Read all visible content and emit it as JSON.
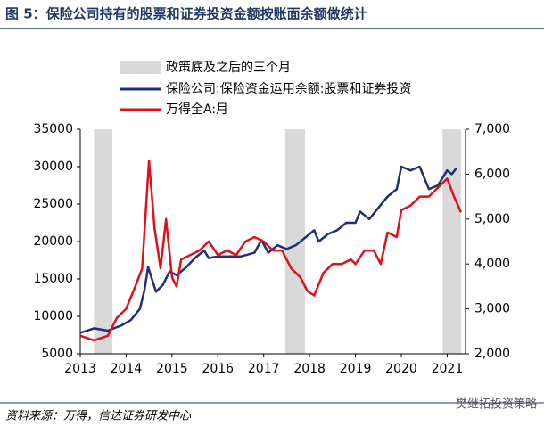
{
  "chart_data": {
    "type": "line",
    "title": "图 5：保险公司持有的股票和证券投资金额按账面余额做统计",
    "source": "资料来源：万得，信达证券研发中心",
    "watermark": "樊继拓投资策略",
    "shaded": {
      "name": "政策底及之后的三个月",
      "color": "#d9d9d9",
      "periods": [
        [
          2013.3,
          2013.7
        ],
        [
          2017.47,
          2017.9
        ],
        [
          2020.9,
          2021.3
        ]
      ]
    },
    "xlim": [
      2013,
      2021.4
    ],
    "xticks": [
      2013,
      2014,
      2015,
      2016,
      2017,
      2018,
      2019,
      2020,
      2021
    ],
    "ylim": [
      5000,
      35000
    ],
    "yticks": [
      5000,
      10000,
      15000,
      20000,
      25000,
      30000,
      35000
    ],
    "y2lim": [
      2000,
      7000
    ],
    "y2ticks": [
      {
        "value": 2000,
        "label": "2,000"
      },
      {
        "value": 3000,
        "label": "3,000"
      },
      {
        "value": 4000,
        "label": "4,000"
      },
      {
        "value": 5000,
        "label": "5,000"
      },
      {
        "value": 6000,
        "label": "6,000"
      },
      {
        "value": 7000,
        "label": "7,000"
      }
    ],
    "series": [
      {
        "name": "保险公司:保险资金运用余额:股票和证券投资",
        "color": "#1f2f7a",
        "x": [
          2013.0,
          2013.3,
          2013.6,
          2013.9,
          2014.1,
          2014.3,
          2014.4,
          2014.48,
          2014.65,
          2014.8,
          2014.95,
          2015.1,
          2015.3,
          2015.5,
          2015.7,
          2015.8,
          2016.0,
          2016.5,
          2016.8,
          2016.95,
          2017.1,
          2017.3,
          2017.5,
          2017.7,
          2017.9,
          2018.1,
          2018.2,
          2018.4,
          2018.6,
          2018.8,
          2019.0,
          2019.1,
          2019.3,
          2019.5,
          2019.7,
          2019.9,
          2020.0,
          2020.2,
          2020.4,
          2020.6,
          2020.8,
          2021.0,
          2021.1,
          2021.2
        ],
        "values": [
          7800,
          8400,
          8100,
          8800,
          9500,
          11000,
          13500,
          16600,
          13300,
          14200,
          16000,
          15500,
          16500,
          17800,
          18800,
          17800,
          18000,
          18000,
          18500,
          20200,
          18500,
          19500,
          19000,
          19500,
          20500,
          21500,
          20000,
          21000,
          21500,
          22500,
          22500,
          24000,
          23000,
          24500,
          26000,
          27000,
          30000,
          29500,
          30000,
          27000,
          27500,
          29500,
          29000,
          29800
        ]
      },
      {
        "name": "万得全A:月",
        "color": "#e0101a",
        "axis": "y2",
        "x": [
          2013.0,
          2013.3,
          2013.6,
          2013.8,
          2014.0,
          2014.2,
          2014.35,
          2014.5,
          2014.62,
          2014.75,
          2014.87,
          2015.0,
          2015.1,
          2015.2,
          2015.4,
          2015.6,
          2015.8,
          2016.0,
          2016.2,
          2016.4,
          2016.6,
          2016.8,
          2017.0,
          2017.2,
          2017.4,
          2017.6,
          2017.8,
          2017.95,
          2018.1,
          2018.3,
          2018.5,
          2018.7,
          2018.9,
          2019.0,
          2019.2,
          2019.4,
          2019.55,
          2019.7,
          2019.9,
          2020.0,
          2020.2,
          2020.4,
          2020.6,
          2020.8,
          2021.0,
          2021.15,
          2021.3
        ],
        "values": [
          2400,
          2300,
          2400,
          2800,
          3000,
          3500,
          3900,
          6300,
          4800,
          3900,
          5000,
          3700,
          3500,
          4100,
          4200,
          4300,
          4500,
          4200,
          4300,
          4200,
          4500,
          4600,
          4500,
          4300,
          4300,
          3900,
          3700,
          3400,
          3300,
          3800,
          4000,
          4000,
          4100,
          4000,
          4300,
          4300,
          4000,
          4700,
          4600,
          5200,
          5300,
          5500,
          5500,
          5700,
          5900,
          5500,
          5150
        ]
      }
    ]
  }
}
